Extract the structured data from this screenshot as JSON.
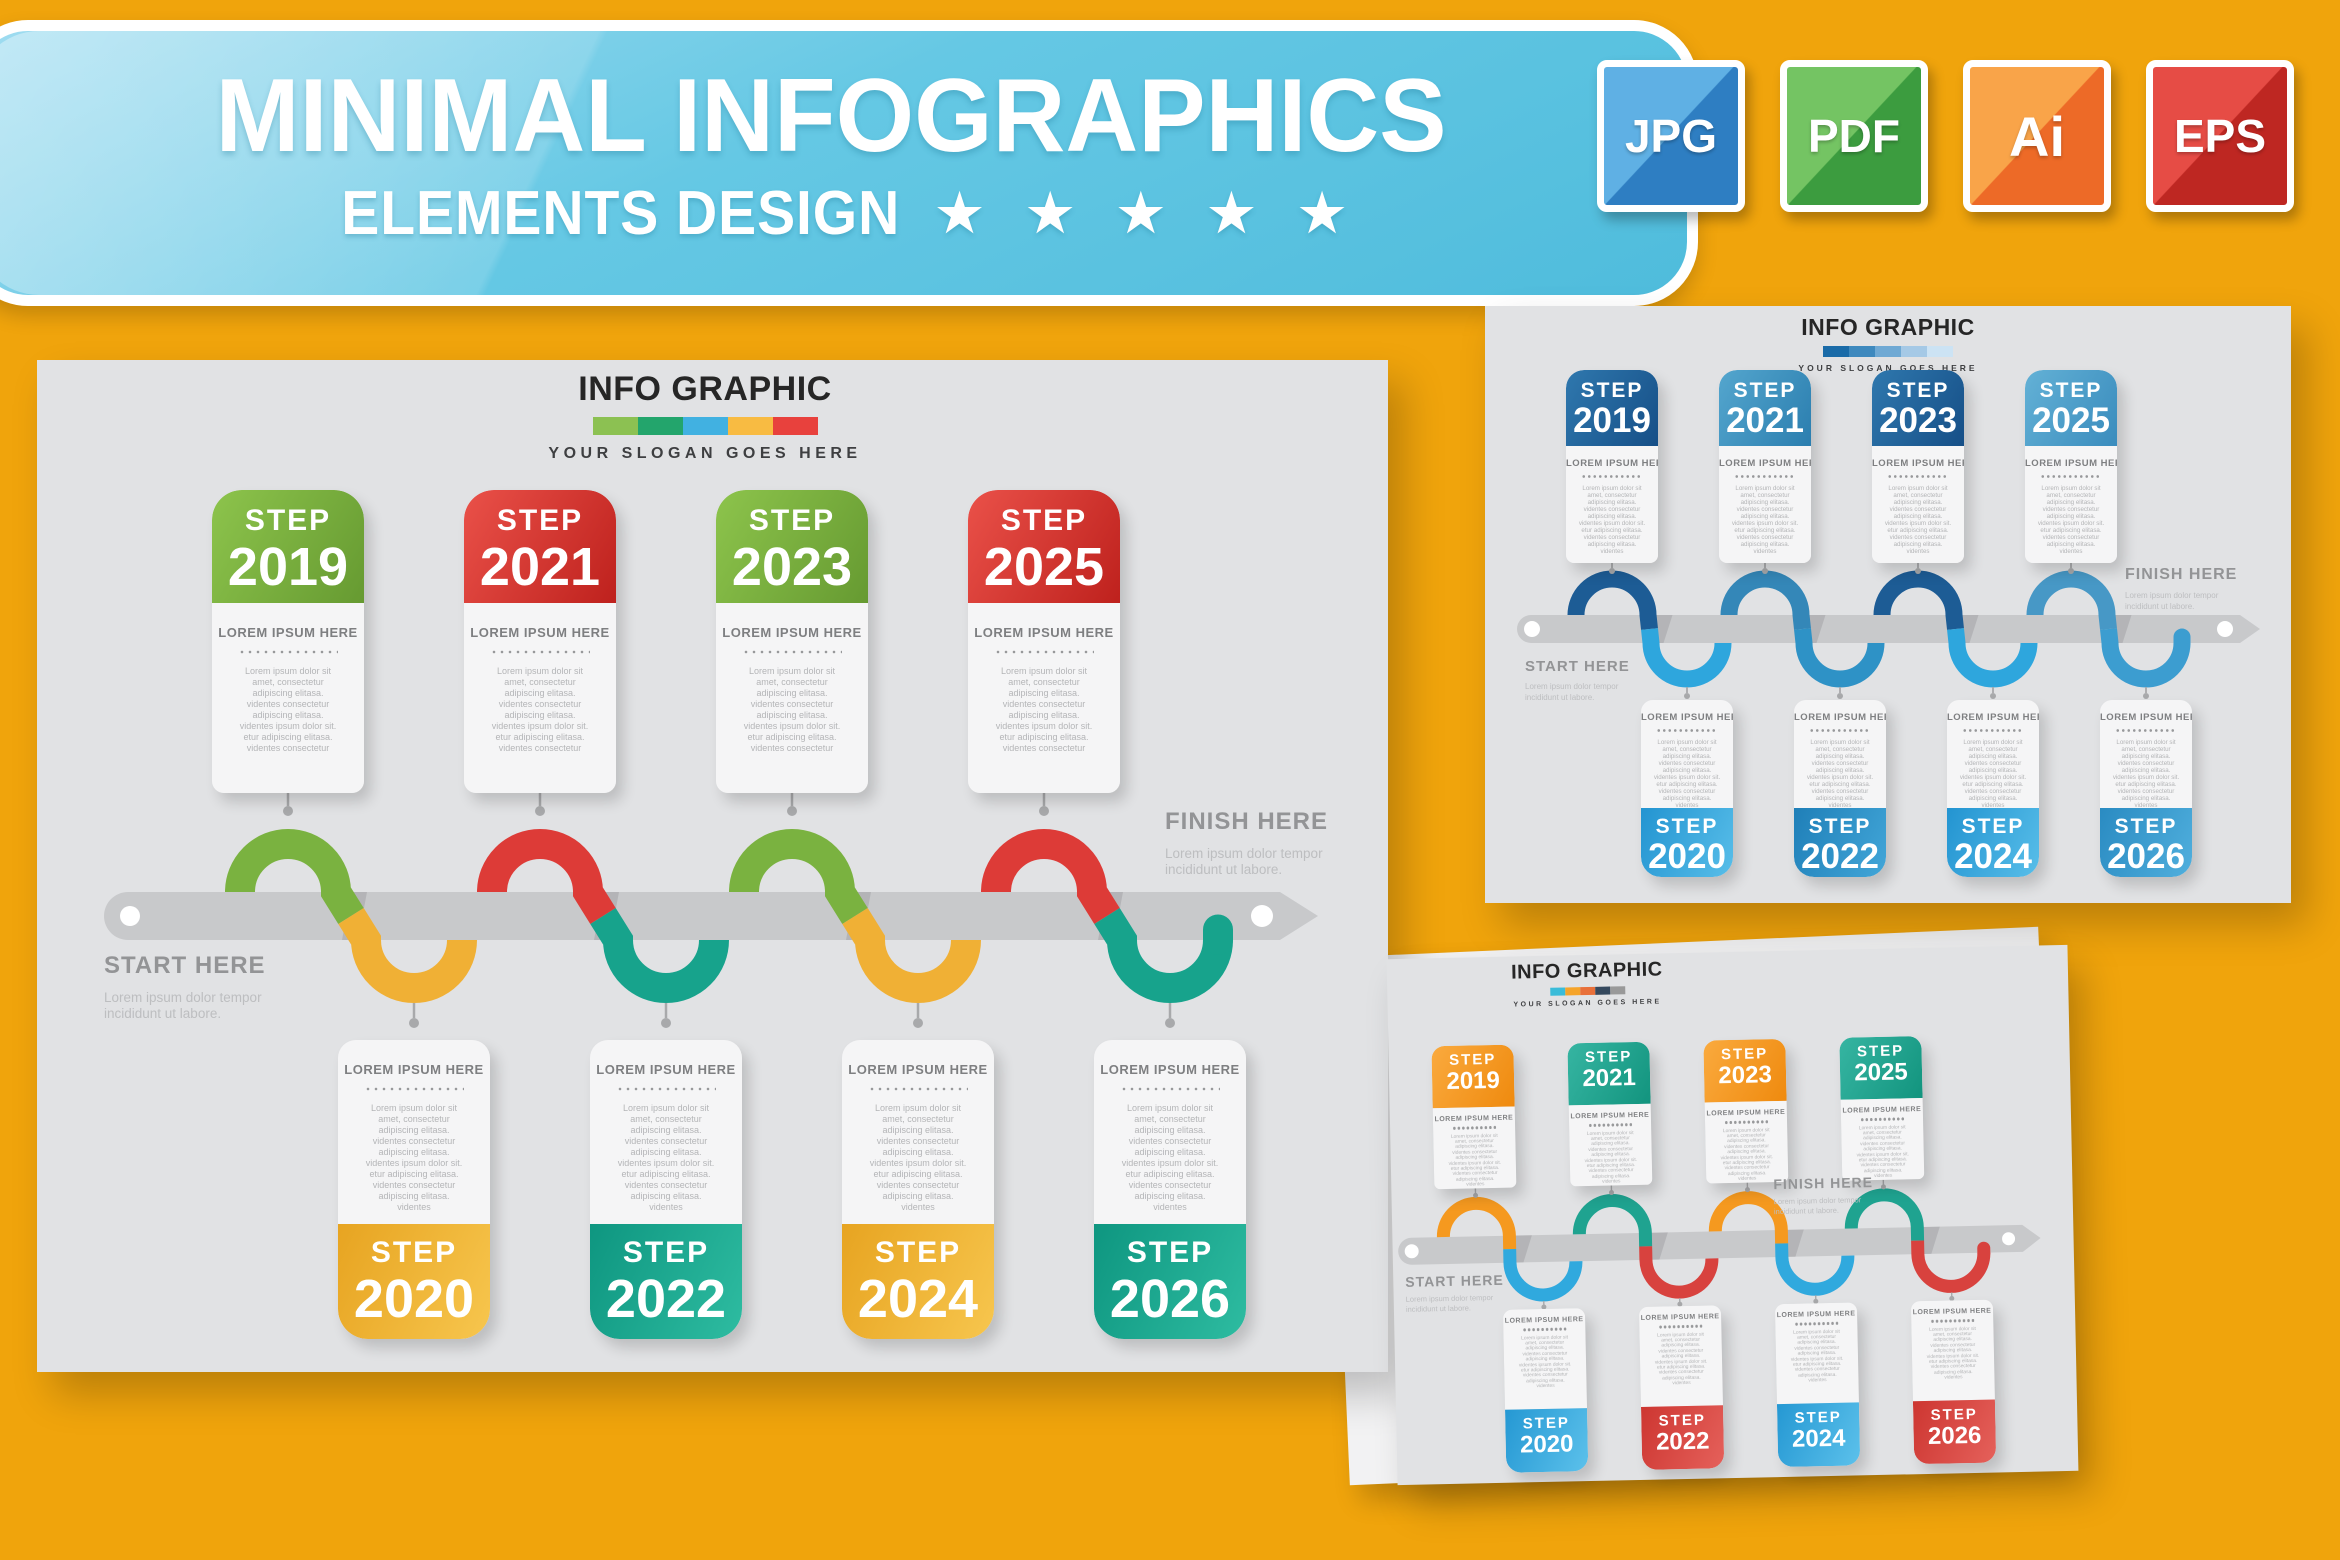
{
  "banner": {
    "title": "MINIMAL INFOGRAPHICS",
    "subtitle": "ELEMENTS DESIGN",
    "star_icon": "★",
    "star_count": 5,
    "bg_from": "#9FDCF0",
    "bg_to": "#4FBCDC"
  },
  "badges": [
    {
      "label": "JPG",
      "color_from": "#5FB0E4",
      "color_to": "#2E7EC2"
    },
    {
      "label": "PDF",
      "color_from": "#74C463",
      "color_to": "#3C9C3F"
    },
    {
      "label": "Ai",
      "color_from": "#F9A449",
      "color_to": "#ED6A27"
    },
    {
      "label": "EPS",
      "color_from": "#E64C45",
      "color_to": "#BE2722"
    }
  ],
  "shared": {
    "info_title": "INFO GRAPHIC",
    "slogan": "YOUR SLOGAN GOES HERE",
    "step_label": "STEP",
    "card_title": "LOREM IPSUM HERE",
    "start_label": "START HERE",
    "finish_label": "FINISH HERE",
    "caption_line1": "Lorem ipsum dolor  tempor",
    "caption_line2": "incididunt ut labore.",
    "lorem_lines": [
      "Lorem ipsum dolor sit",
      "amet, consectetur",
      "adipiscing elitasa.",
      "videntes  consectetur",
      "adipiscing elitasa.",
      "videntes ipsum dolor sit.",
      "etur adipiscing elitasa.",
      "videntes  consectetur",
      "adipiscing elitasa.",
      "videntes"
    ]
  },
  "panels": [
    {
      "name": "classic colors timeline",
      "background": "#E1E2E4",
      "timeline_color": "#C8C9CB",
      "palette": [
        "#8CC152",
        "#23A56C",
        "#41B1E1",
        "#F8BB42",
        "#E8413D"
      ],
      "steps_top": [
        {
          "year": "2019",
          "color_from": "#8DC44C",
          "color_to": "#669A31",
          "wave_color": "#7AB240"
        },
        {
          "year": "2021",
          "color_from": "#EA5149",
          "color_to": "#BE211D",
          "wave_color": "#DD3B37"
        },
        {
          "year": "2023",
          "color_from": "#8DC44C",
          "color_to": "#669A31",
          "wave_color": "#7AB240"
        },
        {
          "year": "2025",
          "color_from": "#EA5149",
          "color_to": "#BE211D",
          "wave_color": "#DD3B37"
        }
      ],
      "steps_bottom": [
        {
          "year": "2020",
          "color_from": "#F7C64E",
          "color_to": "#E7A421",
          "wave_color": "#F0B035"
        },
        {
          "year": "2022",
          "color_from": "#2EBCA1",
          "color_to": "#0E9680",
          "wave_color": "#17A38C"
        },
        {
          "year": "2024",
          "color_from": "#F7C64E",
          "color_to": "#E7A421",
          "wave_color": "#F0B035"
        },
        {
          "year": "2026",
          "color_from": "#2EBCA1",
          "color_to": "#0E9680",
          "wave_color": "#17A38C"
        }
      ]
    },
    {
      "name": "blue timeline",
      "background": "#E1E2E4",
      "timeline_color": "#C8C9CB",
      "palette": [
        "#1A6BA8",
        "#3E89BE",
        "#6FA9D4",
        "#A5C9E6",
        "#CCE3F4"
      ],
      "steps_top": [
        {
          "year": "2019",
          "color_from": "#2F78AE",
          "color_to": "#164F87",
          "wave_color": "#1D5C95"
        },
        {
          "year": "2021",
          "color_from": "#54A6CE",
          "color_to": "#2B7EAF",
          "wave_color": "#3487B8"
        },
        {
          "year": "2023",
          "color_from": "#2F78AE",
          "color_to": "#164F87",
          "wave_color": "#1D5C95"
        },
        {
          "year": "2025",
          "color_from": "#63B1D6",
          "color_to": "#3A8CBD",
          "wave_color": "#4798C6"
        }
      ],
      "steps_bottom": [
        {
          "year": "2020",
          "color_from": "#58BEE9",
          "color_to": "#2394D1",
          "wave_color": "#2EA6DD"
        },
        {
          "year": "2022",
          "color_from": "#42A6D8",
          "color_to": "#1F7FB8",
          "wave_color": "#2E92C6"
        },
        {
          "year": "2024",
          "color_from": "#58BEE9",
          "color_to": "#2394D1",
          "wave_color": "#2EA6DD"
        },
        {
          "year": "2026",
          "color_from": "#50AFDD",
          "color_to": "#2A8BC2",
          "wave_color": "#3C9DD0"
        }
      ]
    },
    {
      "name": "orange teal timeline",
      "background": "#E1E2E4",
      "timeline_color": "#C8C9CB",
      "palette": [
        "#3ABCD9",
        "#F5A42A",
        "#E8703A",
        "#35495E",
        "#999999"
      ],
      "steps_top": [
        {
          "year": "2019",
          "color_from": "#FAAA3E",
          "color_to": "#EF8A0E",
          "wave_color": "#F5991F"
        },
        {
          "year": "2021",
          "color_from": "#36B5A2",
          "color_to": "#12947E",
          "wave_color": "#1FA390"
        },
        {
          "year": "2023",
          "color_from": "#FAAA3E",
          "color_to": "#EF8A0E",
          "wave_color": "#F5991F"
        },
        {
          "year": "2025",
          "color_from": "#36B5A2",
          "color_to": "#12947E",
          "wave_color": "#1FA390"
        }
      ],
      "steps_bottom": [
        {
          "year": "2020",
          "color_from": "#5CC1EB",
          "color_to": "#2598D3",
          "wave_color": "#30A9DE"
        },
        {
          "year": "2022",
          "color_from": "#E5615B",
          "color_to": "#CD3631",
          "wave_color": "#D8423E"
        },
        {
          "year": "2024",
          "color_from": "#5CC1EB",
          "color_to": "#2598D3",
          "wave_color": "#30A9DE"
        },
        {
          "year": "2026",
          "color_from": "#E5615B",
          "color_to": "#CD3631",
          "wave_color": "#D8423E"
        }
      ]
    }
  ]
}
